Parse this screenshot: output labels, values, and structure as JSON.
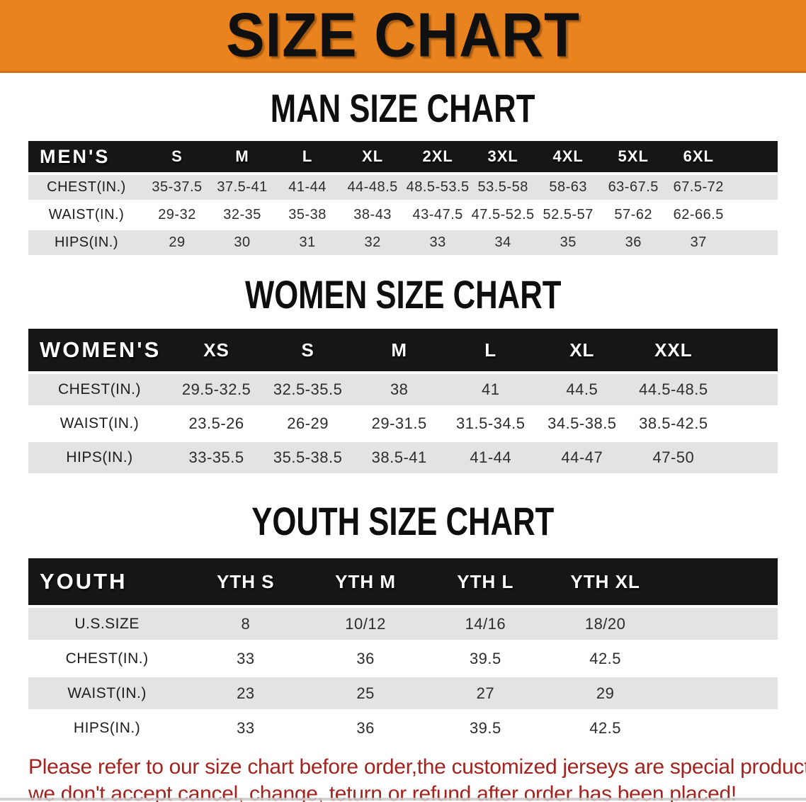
{
  "banner": {
    "title": "SIZE CHART"
  },
  "colors": {
    "accent_orange": "#e8831e",
    "header_black": "#161616",
    "row_gray": "#e3e3e3",
    "disclaimer_red": "#a3241f"
  },
  "tables": [
    {
      "id": "men",
      "heading": "MAN SIZE CHART",
      "header_label": "MEN'S",
      "columns": [
        "S",
        "M",
        "L",
        "XL",
        "2XL",
        "3XL",
        "4XL",
        "5XL",
        "6XL"
      ],
      "rows": [
        {
          "label": "CHEST(IN.)",
          "values": [
            "35-37.5",
            "37.5-41",
            "41-44",
            "44-48.5",
            "48.5-53.5",
            "53.5-58",
            "58-63",
            "63-67.5",
            "67.5-72"
          ]
        },
        {
          "label": "WAIST(IN.)",
          "values": [
            "29-32",
            "32-35",
            "35-38",
            "38-43",
            "43-47.5",
            "47.5-52.5",
            "52.5-57",
            "57-62",
            "62-66.5"
          ]
        },
        {
          "label": "HIPS(IN.)",
          "values": [
            "29",
            "30",
            "31",
            "32",
            "33",
            "34",
            "35",
            "36",
            "37"
          ]
        }
      ]
    },
    {
      "id": "women",
      "heading": "WOMEN SIZE CHART",
      "header_label": "WOMEN'S",
      "columns": [
        "XS",
        "S",
        "M",
        "L",
        "XL",
        "XXL"
      ],
      "rows": [
        {
          "label": "CHEST(IN.)",
          "values": [
            "29.5-32.5",
            "32.5-35.5",
            "38",
            "41",
            "44.5",
            "44.5-48.5"
          ]
        },
        {
          "label": "WAIST(IN.)",
          "values": [
            "23.5-26",
            "26-29",
            "29-31.5",
            "31.5-34.5",
            "34.5-38.5",
            "38.5-42.5"
          ]
        },
        {
          "label": "HIPS(IN.)",
          "values": [
            "33-35.5",
            "35.5-38.5",
            "38.5-41",
            "41-44",
            "44-47",
            "47-50"
          ]
        }
      ]
    },
    {
      "id": "youth",
      "heading": "YOUTH SIZE CHART",
      "header_label": "YOUTH",
      "columns": [
        "YTH S",
        "YTH M",
        "YTH L",
        "YTH XL"
      ],
      "rows": [
        {
          "label": "U.S.SIZE",
          "values": [
            "8",
            "10/12",
            "14/16",
            "18/20"
          ]
        },
        {
          "label": "CHEST(IN.)",
          "values": [
            "33",
            "36",
            "39.5",
            "42.5"
          ]
        },
        {
          "label": "WAIST(IN.)",
          "values": [
            "23",
            "25",
            "27",
            "29"
          ]
        },
        {
          "label": "HIPS(IN.)",
          "values": [
            "33",
            "36",
            "39.5",
            "42.5"
          ]
        }
      ]
    }
  ],
  "disclaimer": {
    "line1": "Please refer to our size chart before order,the customized jerseys are special products,",
    "line2": "we don't accept cancel, change, teturn or refund after order has been placed!"
  }
}
